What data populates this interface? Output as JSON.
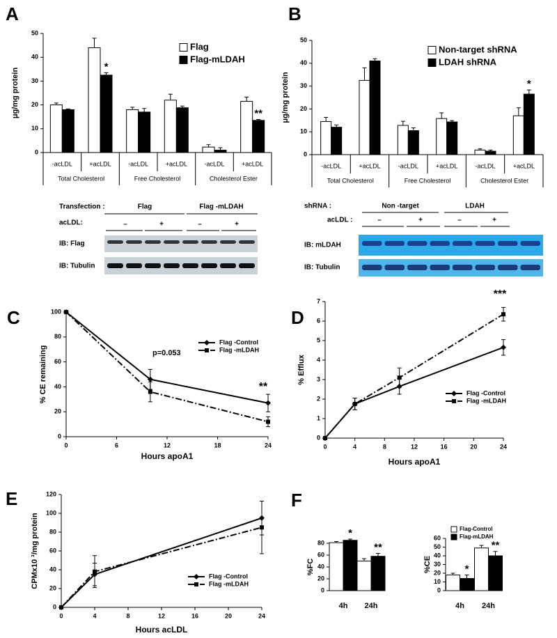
{
  "chart_data": [
    {
      "type": "bar",
      "panel": "A",
      "ylabel": "μg/mg protein",
      "categories": [
        "-acLDL",
        "+acLDL",
        "-acLDL",
        "+acLDL",
        "-acLDL",
        "+acLDL"
      ],
      "groups": [
        "Total Cholesterol",
        "Free Cholesterol",
        "Cholesterol Ester"
      ],
      "series": [
        {
          "name": "Flag",
          "color": "#ffffff",
          "values": [
            20,
            44,
            18,
            22,
            2.3,
            21.5
          ],
          "error": [
            0.8,
            4,
            1,
            2.5,
            1,
            1.8
          ]
        },
        {
          "name": "Flag-mLDAH",
          "color": "#000000",
          "values": [
            18,
            32.5,
            17,
            18.8,
            1,
            13.5
          ],
          "error": [
            0.3,
            1,
            1.5,
            0.7,
            1,
            0.4
          ]
        }
      ],
      "ylim": [
        0,
        50
      ],
      "yticks": [
        0,
        10,
        20,
        30,
        40,
        50
      ],
      "annotations": [
        "*",
        "**"
      ]
    },
    {
      "type": "bar",
      "panel": "B",
      "ylabel": "μg/mg protein",
      "categories": [
        "-acLDL",
        "+acLDL",
        "-acLDL",
        "+acLDL",
        "-acLDL",
        "+acLDL"
      ],
      "groups": [
        "Total Cholesterol",
        "Free Cholesterol",
        "Cholesterol Ester"
      ],
      "series": [
        {
          "name": "Non-target  shRNA",
          "color": "#ffffff",
          "values": [
            14.5,
            32.5,
            12.8,
            15.8,
            2,
            17
          ],
          "error": [
            1.8,
            5.5,
            1.8,
            2.5,
            0.5,
            3.5
          ]
        },
        {
          "name": "LDAH  shRNA",
          "color": "#000000",
          "values": [
            12,
            41,
            10.5,
            14.3,
            1.5,
            26.5
          ],
          "error": [
            1,
            1,
            1.2,
            0.6,
            0.5,
            1.8
          ]
        }
      ],
      "ylim": [
        0,
        50
      ],
      "yticks": [
        0,
        10,
        20,
        30,
        40,
        50
      ],
      "annotations": [
        "*"
      ]
    },
    {
      "type": "line",
      "panel": "C",
      "ylabel": "% CE remaining",
      "xlabel": "Hours apoA1",
      "x": [
        0,
        10,
        24
      ],
      "series": [
        {
          "name": "Flag -Control",
          "color": "#000000",
          "line_style": "solid",
          "marker": "diamond",
          "values": [
            100,
            46,
            27
          ],
          "error": [
            0,
            8,
            7
          ]
        },
        {
          "name": "Flag -mLDAH",
          "color": "#000000",
          "line_style": "dashdot",
          "marker": "square",
          "values": [
            100,
            36,
            12
          ],
          "error": [
            0,
            8,
            4
          ]
        }
      ],
      "xlim": [
        0,
        24
      ],
      "xticks": [
        0,
        6,
        12,
        18,
        24
      ],
      "ylim": [
        0,
        100
      ],
      "yticks": [
        0,
        20,
        40,
        60,
        80,
        100
      ],
      "annotations": [
        "p=0.053",
        "**"
      ]
    },
    {
      "type": "line",
      "panel": "D",
      "ylabel": "% Efflux",
      "xlabel": "Hours apoA1",
      "x": [
        0,
        4,
        10,
        24
      ],
      "series": [
        {
          "name": "Flag -Control",
          "color": "#000000",
          "line_style": "solid",
          "marker": "diamond",
          "values": [
            0,
            1.75,
            2.65,
            4.65
          ],
          "error": [
            0,
            0.3,
            0.4,
            0.4
          ]
        },
        {
          "name": "Flag -mLDAH",
          "color": "#000000",
          "line_style": "dashdot",
          "marker": "square",
          "values": [
            0,
            1.75,
            3.1,
            6.35
          ],
          "error": [
            0,
            0.3,
            0.5,
            0.35
          ]
        }
      ],
      "xlim": [
        0,
        24
      ],
      "xticks": [
        0,
        4,
        8,
        12,
        16,
        20,
        24
      ],
      "ylim": [
        0,
        7
      ],
      "yticks": [
        0,
        1,
        2,
        3,
        4,
        5,
        6,
        7
      ],
      "annotations": [
        "***"
      ]
    },
    {
      "type": "line",
      "panel": "E",
      "ylabel": "CPMx10 ³/mg protein",
      "xlabel": "Hours  acLDL",
      "x": [
        0,
        4,
        24
      ],
      "series": [
        {
          "name": "Flag -Control",
          "color": "#000000",
          "line_style": "solid",
          "marker": "diamond",
          "values": [
            0,
            35,
            95
          ],
          "error": [
            0,
            12,
            18
          ]
        },
        {
          "name": "Flag -mLDAH",
          "color": "#000000",
          "line_style": "dashdot",
          "marker": "square",
          "values": [
            0,
            38,
            85
          ],
          "error": [
            0,
            17,
            28
          ]
        }
      ],
      "xlim": [
        0,
        24
      ],
      "xticks": [
        0,
        4,
        8,
        12,
        16,
        20,
        24
      ],
      "ylim": [
        0,
        120
      ],
      "yticks": [
        0,
        20,
        40,
        60,
        80,
        100,
        120
      ],
      "annotations": []
    },
    {
      "type": "bar",
      "panel": "F",
      "ylabel": "%FC",
      "categories": [
        "4h",
        "24h"
      ],
      "series": [
        {
          "color": "#ffffff",
          "values": [
            81,
            50
          ],
          "error": [
            2,
            4
          ]
        },
        {
          "color": "#000000",
          "values": [
            85,
            58
          ],
          "error": [
            2,
            5
          ]
        }
      ],
      "ylim": [
        0,
        80
      ],
      "yticks": [
        0,
        20,
        40,
        60,
        80
      ],
      "annotations": [
        "*",
        "**"
      ]
    },
    {
      "type": "bar",
      "ylabel": "%CE",
      "categories": [
        "4h",
        "24h"
      ],
      "series": [
        {
          "name": "Flag-Control",
          "color": "#ffffff",
          "values": [
            18,
            49
          ],
          "error": [
            2,
            3
          ]
        },
        {
          "name": "Flag-mLDAH",
          "color": "#000000",
          "values": [
            14,
            40
          ],
          "error": [
            4,
            5
          ]
        }
      ],
      "ylim": [
        0,
        60
      ],
      "yticks": [
        0,
        10,
        20,
        30,
        40,
        50,
        60
      ],
      "annotations": [
        "*",
        "**"
      ]
    }
  ],
  "blots": [
    {
      "header": [
        {
          "label": "Transfection :",
          "groups": [
            "Flag",
            "Flag -mLDAH"
          ]
        },
        {
          "label": "acLDL:",
          "groups": [
            "–",
            "+",
            "–",
            "+"
          ]
        }
      ],
      "bands": [
        "IB: Flag",
        "IB: Tubulin"
      ]
    },
    {
      "header": [
        {
          "label": "shRNA  :",
          "groups": [
            "Non -target",
            "LDAH"
          ]
        },
        {
          "label": "acLDL  :",
          "groups": [
            "–",
            "+",
            "–",
            "+"
          ]
        }
      ],
      "bands": [
        "IB: mLDAH",
        "IB: Tubulin"
      ]
    }
  ]
}
